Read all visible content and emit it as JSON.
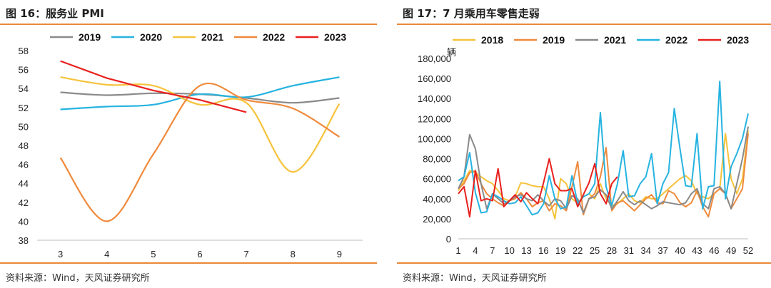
{
  "colors": {
    "accent_rule": "#e8883a",
    "s2018": "#f5c33b",
    "s2019": "#ef8a3c",
    "s2020": "#26b3e0",
    "s2021": "#8a8a8a",
    "s2022": "#26b3e0",
    "s2023": "#e8201d"
  },
  "left": {
    "title": "图 16：服务业 PMI",
    "source": "资料来源：Wind，天风证券研究所"
  },
  "right": {
    "title": "图 17：7 月乘用车零售走弱",
    "source": "资料来源：Wind，天风证券研究所"
  },
  "chart_data": [
    {
      "type": "line",
      "title": "",
      "xlabel": "",
      "ylabel": "",
      "x": [
        3,
        4,
        5,
        6,
        7,
        8,
        9
      ],
      "ylim": [
        38,
        58
      ],
      "yticks": [
        38,
        40,
        42,
        44,
        46,
        48,
        50,
        52,
        54,
        56,
        58
      ],
      "legend_position": "top",
      "grid": false,
      "series": [
        {
          "name": "2019",
          "color": "#8a8a8a",
          "values": [
            53.6,
            53.3,
            53.5,
            53.4,
            53.0,
            52.5,
            53.0
          ]
        },
        {
          "name": "2020",
          "color": "#26b3e0",
          "values": [
            51.8,
            52.1,
            52.3,
            53.4,
            53.1,
            54.3,
            55.2
          ]
        },
        {
          "name": "2021",
          "color": "#f5c33b",
          "values": [
            55.2,
            54.4,
            54.3,
            52.3,
            52.5,
            45.2,
            52.4
          ]
        },
        {
          "name": "2022",
          "color": "#ef8a3c",
          "values": [
            46.7,
            40.0,
            47.1,
            54.3,
            52.8,
            51.9,
            48.9
          ]
        },
        {
          "name": "2023",
          "color": "#e8201d",
          "values": [
            56.9,
            55.1,
            53.8,
            52.8,
            51.5,
            null,
            null
          ]
        }
      ]
    },
    {
      "type": "line",
      "title": "",
      "xlabel": "",
      "ylabel": "辆",
      "x_ticks": [
        1,
        4,
        7,
        10,
        13,
        16,
        19,
        22,
        25,
        28,
        31,
        34,
        37,
        40,
        43,
        46,
        49,
        52
      ],
      "ylim": [
        0,
        180000
      ],
      "yticks": [
        0,
        20000,
        40000,
        60000,
        80000,
        100000,
        120000,
        140000,
        160000,
        180000
      ],
      "ytick_labels": [
        "0",
        "20,000",
        "40,000",
        "60,000",
        "80,000",
        "100,000",
        "120,000",
        "140,000",
        "160,000",
        "180,000"
      ],
      "legend_position": "top",
      "grid": false,
      "series": [
        {
          "name": "2018",
          "color": "#f5c33b",
          "values": [
            48000,
            58000,
            68000,
            66000,
            62000,
            58000,
            55000,
            48000,
            40000,
            38000,
            42000,
            56000,
            55000,
            53000,
            52000,
            52000,
            40000,
            20000,
            60000,
            55000,
            40000,
            36000,
            42000,
            45000,
            40000,
            55000,
            40000,
            33000,
            35000,
            40000,
            45000,
            38000,
            36000,
            42000,
            40000,
            40000,
            45000,
            50000,
            55000,
            60000,
            63000,
            58000,
            45000,
            42000,
            40000,
            45000,
            50000,
            105000,
            60000,
            45000,
            60000,
            108000
          ]
        },
        {
          "name": "2019",
          "color": "#ef8a3c",
          "values": [
            50000,
            55000,
            66000,
            68000,
            55000,
            45000,
            40000,
            36000,
            33000,
            38000,
            40000,
            46000,
            40000,
            32000,
            36000,
            38000,
            28000,
            35000,
            33000,
            28000,
            52000,
            77000,
            24000,
            40000,
            45000,
            62000,
            91000,
            28000,
            36000,
            38000,
            33000,
            28000,
            34000,
            40000,
            44000,
            36000,
            35000,
            48000,
            45000,
            36000,
            32000,
            36000,
            48000,
            32000,
            22000,
            45000,
            50000,
            45000,
            30000,
            40000,
            50000,
            105000
          ]
        },
        {
          "name": "2021",
          "color": "#8a8a8a",
          "values": [
            50000,
            62000,
            104000,
            90000,
            55000,
            30000,
            45000,
            40000,
            35000,
            38000,
            42000,
            44000,
            40000,
            38000,
            44000,
            38000,
            33000,
            40000,
            38000,
            30000,
            43000,
            40000,
            26000,
            40000,
            42000,
            49000,
            44000,
            30000,
            38000,
            47000,
            38000,
            34000,
            38000,
            34000,
            30000,
            33000,
            37000,
            36000,
            35000,
            34000,
            36000,
            45000,
            50000,
            35000,
            30000,
            50000,
            52000,
            45000,
            30000,
            55000,
            80000,
            112000
          ]
        },
        {
          "name": "2022",
          "color": "#26b3e0",
          "values": [
            58000,
            62000,
            86000,
            46000,
            26000,
            27000,
            45000,
            42000,
            38000,
            35000,
            36000,
            42000,
            33000,
            24000,
            26000,
            35000,
            63000,
            40000,
            30000,
            32000,
            63000,
            35000,
            42000,
            45000,
            55000,
            126000,
            52000,
            33000,
            55000,
            88000,
            42000,
            43000,
            55000,
            62000,
            85000,
            35000,
            55000,
            66000,
            130000,
            90000,
            53000,
            52000,
            105000,
            30000,
            52000,
            53000,
            157000,
            40000,
            72000,
            85000,
            100000,
            125000
          ]
        },
        {
          "name": "2023",
          "color": "#e8201d",
          "values": [
            45000,
            52000,
            22000,
            68000,
            38000,
            40000,
            38000,
            70000,
            32000,
            38000,
            44000,
            37000,
            46000,
            40000,
            35000,
            56000,
            80000,
            55000,
            48000,
            48000,
            50000,
            32000,
            44000,
            56000,
            75000,
            45000,
            35000,
            55000,
            62000,
            null,
            null,
            null,
            null,
            null,
            null,
            null,
            null,
            null,
            null,
            null,
            null,
            null,
            null,
            null,
            null,
            null,
            null,
            null,
            null,
            null,
            null,
            null
          ]
        }
      ]
    }
  ]
}
